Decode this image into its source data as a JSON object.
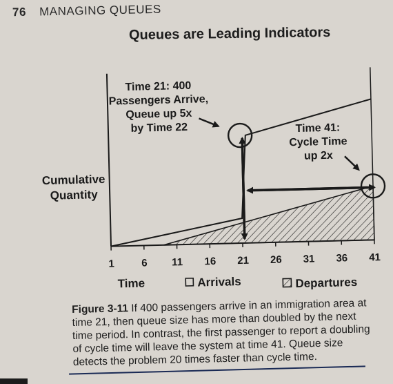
{
  "header": {
    "page_number": "76",
    "chapter": "MANAGING QUEUES"
  },
  "figure": {
    "title": "Queues are Leading Indicators",
    "annotation_left": [
      "Time 21: 400",
      "Passengers Arrive,",
      "Queue up 5x",
      "by Time 22"
    ],
    "annotation_right": [
      "Time 41:",
      "Cycle Time",
      "up 2x"
    ],
    "ylabel": [
      "Cumulative",
      "Quantity"
    ],
    "xlabel": "Time",
    "legend": {
      "arrivals": "Arrivals",
      "departures": "Departures"
    }
  },
  "chart_data": {
    "type": "line",
    "x": [
      1,
      6,
      11,
      16,
      21,
      26,
      31,
      36,
      41
    ],
    "xticks": [
      "1",
      "6",
      "11",
      "16",
      "21",
      "26",
      "31",
      "36",
      "41"
    ],
    "xlim": [
      1,
      41
    ],
    "ylim": [
      0,
      800
    ],
    "series": [
      {
        "name": "Arrivals",
        "points": [
          [
            1,
            0
          ],
          [
            21,
            120
          ],
          [
            21.8,
            520
          ],
          [
            41,
            680
          ]
        ]
      },
      {
        "name": "Departures",
        "points": [
          [
            9,
            0
          ],
          [
            41,
            260
          ]
        ],
        "style": "hatched-area"
      }
    ],
    "annotations": [
      {
        "label": "Time 21",
        "x": 21,
        "y": 520,
        "marker": "circle"
      },
      {
        "label": "Time 41",
        "x": 41,
        "y": 260,
        "marker": "circle"
      }
    ],
    "grid": false
  },
  "caption": {
    "lead": "Figure 3-11",
    "lines": [
      " If 400 passengers arrive in an immigration area at",
      "time 21, then queue size has more than doubled by the next",
      "time period. In contrast, the first passenger to report a doubling",
      "of cycle time will leave the system at time 41. Queue size",
      "detects the problem 20 times faster than cycle time."
    ]
  },
  "colors": {
    "paper": "#d9d5cf",
    "ink": "#1a1a1a"
  }
}
